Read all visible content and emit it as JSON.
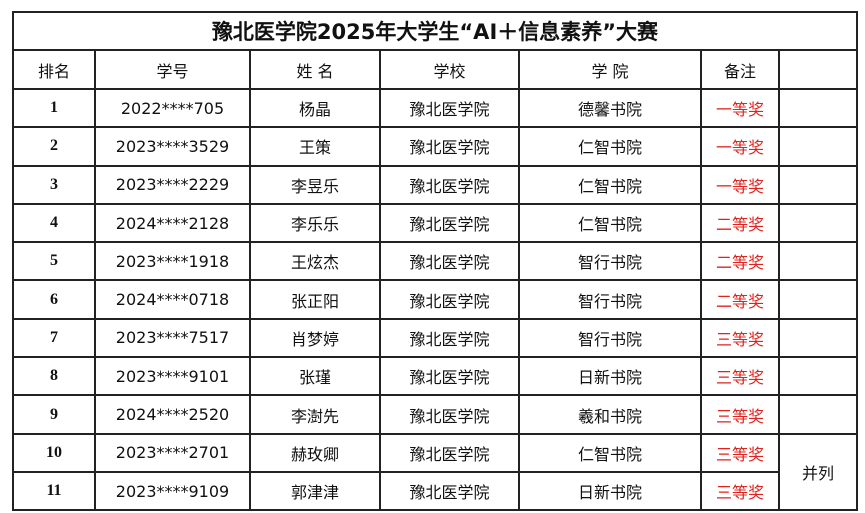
{
  "title": "豫北医学院2025年大学生“AI＋信息素养”大赛",
  "headers": [
    "排名",
    "学号",
    "姓 名",
    "学校",
    "学 院",
    "备注",
    ""
  ],
  "rows": [
    {
      "rank": "1",
      "id": "2022****705",
      "name": "杨晶",
      "school": "豫北医学院",
      "college": "德馨书院",
      "award": "一等奖"
    },
    {
      "rank": "2",
      "id": "2023****3529",
      "name": "王策",
      "school": "豫北医学院",
      "college": "仁智书院",
      "award": "一等奖"
    },
    {
      "rank": "3",
      "id": "2023****2229",
      "name": "李昱乐",
      "school": "豫北医学院",
      "college": "仁智书院",
      "award": "一等奖"
    },
    {
      "rank": "4",
      "id": "2024****2128",
      "name": "李乐乐",
      "school": "豫北医学院",
      "college": "仁智书院",
      "award": "二等奖"
    },
    {
      "rank": "5",
      "id": "2023****1918",
      "name": "王炫杰",
      "school": "豫北医学院",
      "college": "智行书院",
      "award": "二等奖"
    },
    {
      "rank": "6",
      "id": "2024****0718",
      "name": "张正阳",
      "school": "豫北医学院",
      "college": "智行书院",
      "award": "二等奖"
    },
    {
      "rank": "7",
      "id": "2023****7517",
      "name": "肖梦婷",
      "school": "豫北医学院",
      "college": "智行书院",
      "award": "三等奖"
    },
    {
      "rank": "8",
      "id": "2023****9101",
      "name": "张瑾",
      "school": "豫北医学院",
      "college": "日新书院",
      "award": "三等奖"
    },
    {
      "rank": "9",
      "id": "2024****2520",
      "name": "李澍先",
      "school": "豫北医学院",
      "college": "羲和书院",
      "award": "三等奖"
    },
    {
      "rank": "10",
      "id": "2023****2701",
      "name": "赫玫卿",
      "school": "豫北医学院",
      "college": "仁智书院",
      "award": "三等奖"
    },
    {
      "rank": "11",
      "id": "2023****9109",
      "name": "郭津津",
      "school": "豫北医学院",
      "college": "日新书院",
      "award": "三等奖"
    }
  ],
  "tie_note": "并列",
  "colors": {
    "award": "#e0231c",
    "border": "#222222"
  }
}
